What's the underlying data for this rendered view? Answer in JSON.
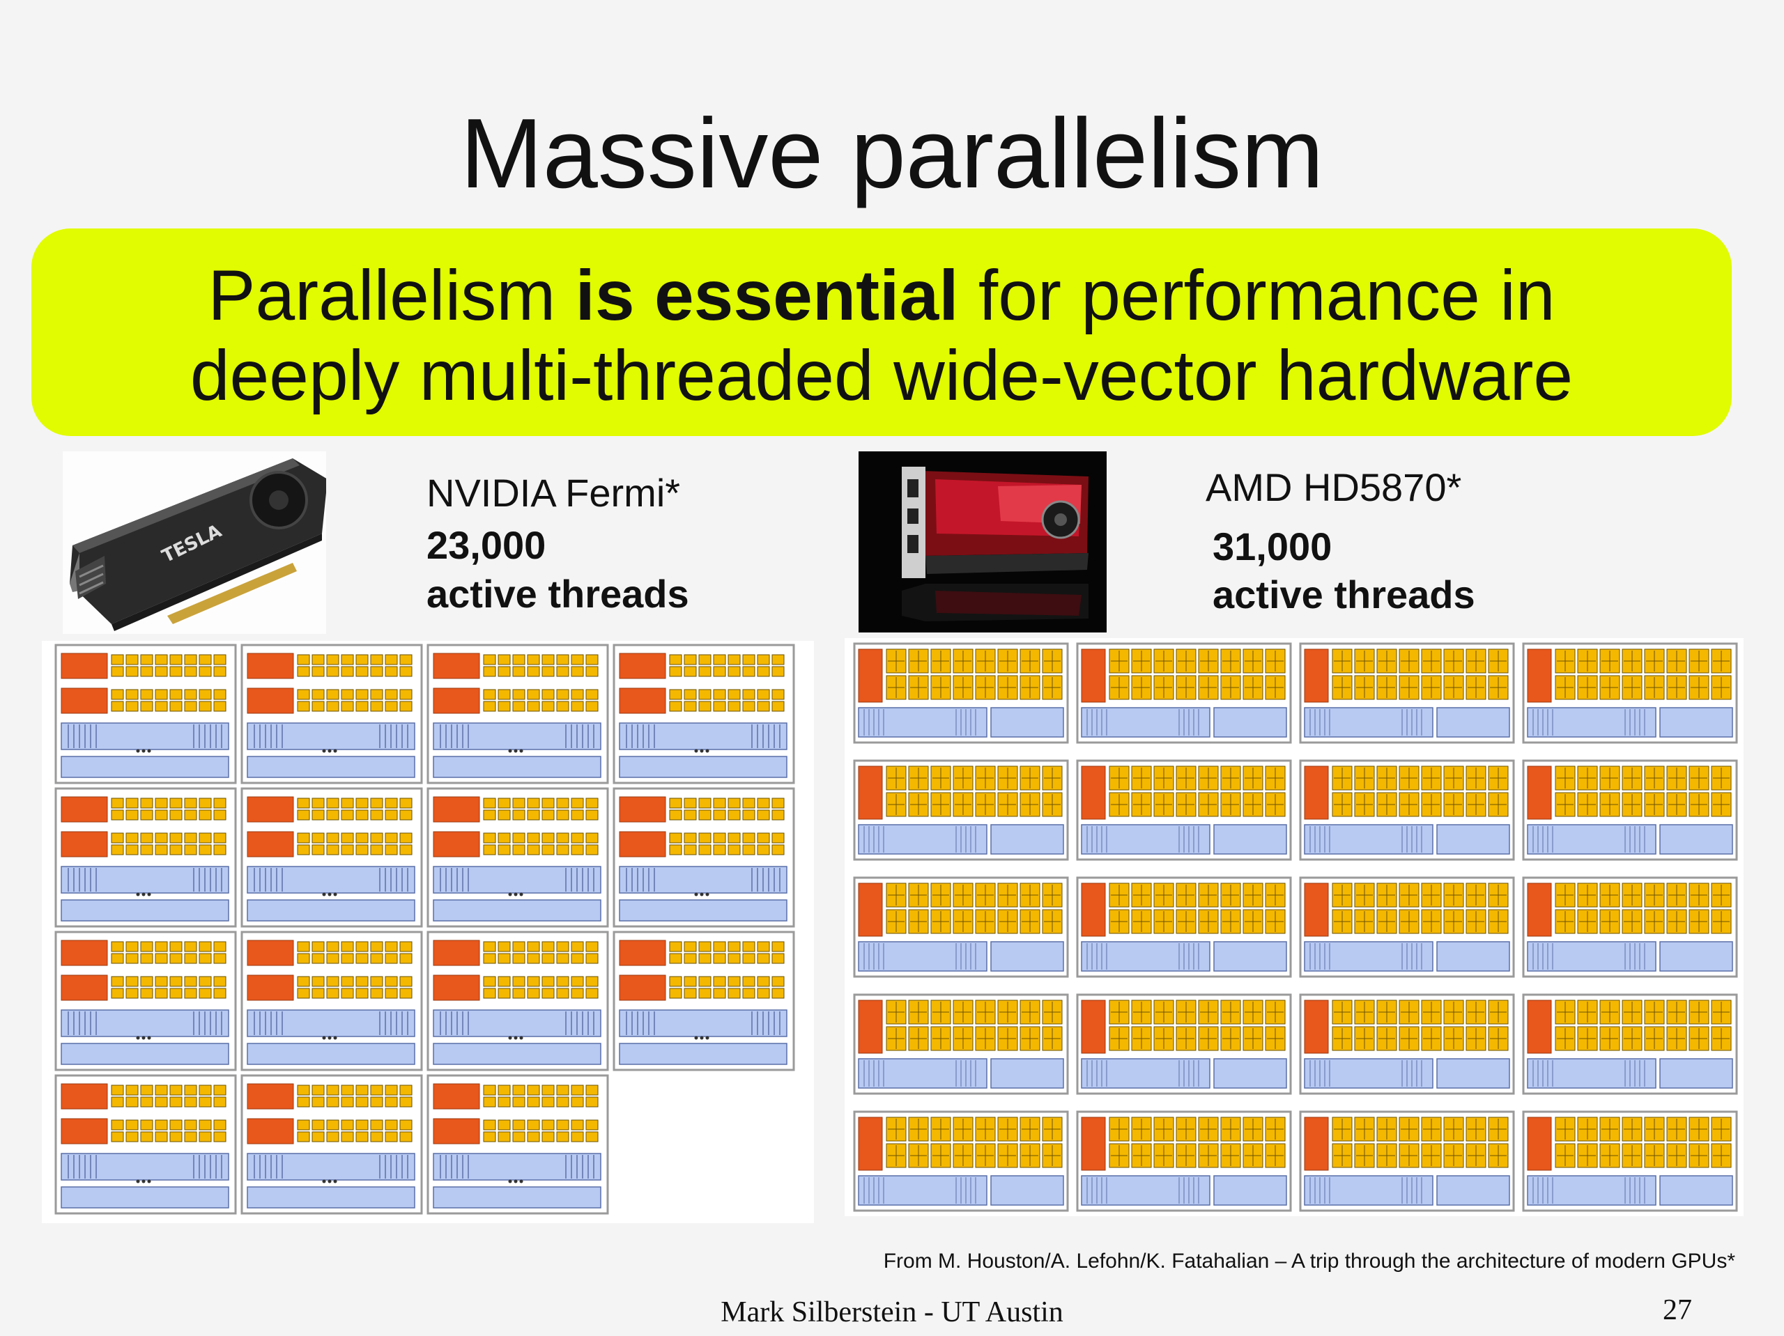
{
  "slide": {
    "title": "Massive parallelism",
    "banner": {
      "line1_before": "Parallelism ",
      "line1_bold": "is essential",
      "line1_after": " for performance in",
      "line2": "deeply multi-threaded wide-vector hardware",
      "background_color": "#e1fb00"
    },
    "nvidia": {
      "name": "NVIDIA Fermi*",
      "threads_count": "23,000",
      "threads_label": "active threads",
      "image_icon": "tesla-gpu-card-image",
      "card_logo_text": "TESLA",
      "core_layout_rows": [
        4,
        4,
        4,
        3
      ]
    },
    "amd": {
      "name": "AMD HD5870*",
      "threads_count": "31,000",
      "threads_label": "active threads",
      "image_icon": "radeon-gpu-card-image",
      "core_layout_rows": [
        4,
        4,
        4,
        4,
        4
      ]
    },
    "colors": {
      "control_unit": "#e8571c",
      "alu": "#f5b800",
      "context": "#b8caf2",
      "core_border": "#9a9a9a"
    },
    "credit": "From M. Houston/A. Lefohn/K. Fatahalian – A trip through the architecture of modern GPUs*",
    "footer": "Mark Silberstein - UT Austin",
    "page_number": "27"
  }
}
